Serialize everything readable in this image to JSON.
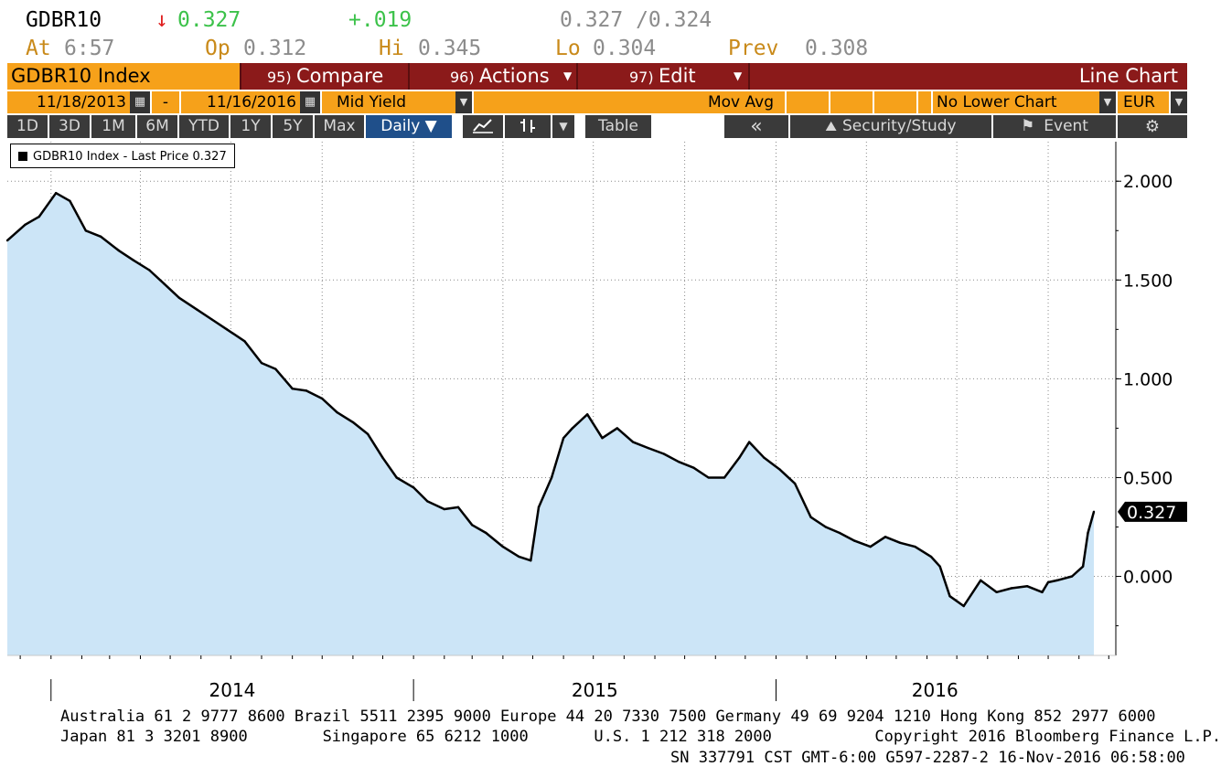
{
  "quote": {
    "ticker": "GDBR10",
    "direction_arrow": "↓",
    "last": "0.327",
    "change": "+.019",
    "bid_ask": "0.327 /0.324",
    "time_label": "At",
    "time": "6:57",
    "open_label": "Op",
    "open": "0.312",
    "high_label": "Hi",
    "high": "0.345",
    "low_label": "Lo",
    "low": "0.304",
    "prev_label": "Prev",
    "prev": "0.308"
  },
  "menu": {
    "title": "GDBR10 Index",
    "compare_num": "95)",
    "compare": "Compare",
    "actions_num": "96)",
    "actions": "Actions",
    "edit_num": "97)",
    "edit": "Edit",
    "chart_type": "Line Chart"
  },
  "controls": {
    "start_date": "11/18/2013",
    "dash": "-",
    "end_date": "11/16/2016",
    "field": "Mid Yield",
    "mov_avg": "Mov Avg",
    "lower_chart": "No Lower Chart",
    "currency": "EUR"
  },
  "toolbar": {
    "ranges": [
      "1D",
      "3D",
      "1M",
      "6M",
      "YTD",
      "1Y",
      "5Y",
      "Max"
    ],
    "period": "Daily ▼",
    "table": "Table",
    "collapse": "«",
    "security_study": "Security/Study",
    "event": "Event",
    "settings_icon": "gear-icon"
  },
  "legend": {
    "text": "GDBR10 Index - Last Price 0.327"
  },
  "chart_data": {
    "type": "area",
    "title": "",
    "xlabel": "",
    "ylabel": "",
    "series": [
      {
        "name": "GDBR10 Index - Last Price",
        "x": [
          "2013-11-18",
          "2013-12-06",
          "2013-12-20",
          "2014-01-06",
          "2014-01-20",
          "2014-02-05",
          "2014-02-20",
          "2014-03-10",
          "2014-03-25",
          "2014-04-10",
          "2014-04-25",
          "2014-05-10",
          "2014-05-28",
          "2014-06-12",
          "2014-06-27",
          "2014-07-15",
          "2014-08-01",
          "2014-08-15",
          "2014-09-01",
          "2014-09-15",
          "2014-10-01",
          "2014-10-16",
          "2014-11-01",
          "2014-11-16",
          "2014-12-01",
          "2014-12-15",
          "2015-01-01",
          "2015-01-15",
          "2015-02-01",
          "2015-02-15",
          "2015-03-01",
          "2015-03-15",
          "2015-04-01",
          "2015-04-17",
          "2015-04-29",
          "2015-05-07",
          "2015-05-20",
          "2015-06-01",
          "2015-06-10",
          "2015-06-25",
          "2015-07-10",
          "2015-07-25",
          "2015-08-10",
          "2015-08-25",
          "2015-09-10",
          "2015-09-25",
          "2015-10-10",
          "2015-10-25",
          "2015-11-10",
          "2015-11-25",
          "2015-12-05",
          "2015-12-20",
          "2016-01-05",
          "2016-01-20",
          "2016-02-05",
          "2016-02-20",
          "2016-03-05",
          "2016-03-20",
          "2016-04-05",
          "2016-04-20",
          "2016-05-05",
          "2016-05-20",
          "2016-06-05",
          "2016-06-14",
          "2016-06-24",
          "2016-07-08",
          "2016-07-25",
          "2016-08-10",
          "2016-08-25",
          "2016-09-10",
          "2016-09-25",
          "2016-10-01",
          "2016-10-10",
          "2016-10-25",
          "2016-11-05",
          "2016-11-10",
          "2016-11-16"
        ],
        "values": [
          1.7,
          1.78,
          1.82,
          1.94,
          1.9,
          1.75,
          1.72,
          1.65,
          1.6,
          1.55,
          1.48,
          1.41,
          1.35,
          1.3,
          1.25,
          1.19,
          1.08,
          1.05,
          0.95,
          0.94,
          0.9,
          0.83,
          0.78,
          0.72,
          0.6,
          0.5,
          0.45,
          0.38,
          0.34,
          0.35,
          0.26,
          0.22,
          0.15,
          0.1,
          0.08,
          0.35,
          0.5,
          0.7,
          0.75,
          0.82,
          0.7,
          0.75,
          0.68,
          0.65,
          0.62,
          0.58,
          0.55,
          0.5,
          0.5,
          0.6,
          0.68,
          0.6,
          0.54,
          0.47,
          0.3,
          0.25,
          0.22,
          0.18,
          0.15,
          0.2,
          0.17,
          0.15,
          0.1,
          0.05,
          -0.1,
          -0.15,
          -0.02,
          -0.08,
          -0.06,
          -0.05,
          -0.08,
          -0.03,
          -0.02,
          0.0,
          0.05,
          0.22,
          0.327
        ]
      }
    ],
    "x_ticks": [
      "2014",
      "2015",
      "2016"
    ],
    "y_ticks": [
      2.0,
      1.5,
      1.0,
      0.5,
      0.0
    ],
    "y_tick_labels": [
      "2.000",
      "1.500",
      "1.000",
      "0.500",
      "0.000"
    ],
    "ylim": [
      -0.4,
      2.2
    ],
    "last_value_label": "0.327",
    "grid": true,
    "line_color": "#000000",
    "fill_color": "#cce5f7"
  },
  "footer": {
    "line1": "Australia 61 2 9777 8600 Brazil 5511 2395 9000 Europe 44 20 7330 7500 Germany 49 69 9204 1210 Hong Kong 852 2977 6000",
    "line2": "Japan 81 3 3201 8900        Singapore 65 6212 1000       U.S. 1 212 318 2000           Copyright 2016 Bloomberg Finance L.P.",
    "line3": "SN 337791 CST  GMT-6:00 G597-2287-2 16-Nov-2016 06:58:00"
  }
}
